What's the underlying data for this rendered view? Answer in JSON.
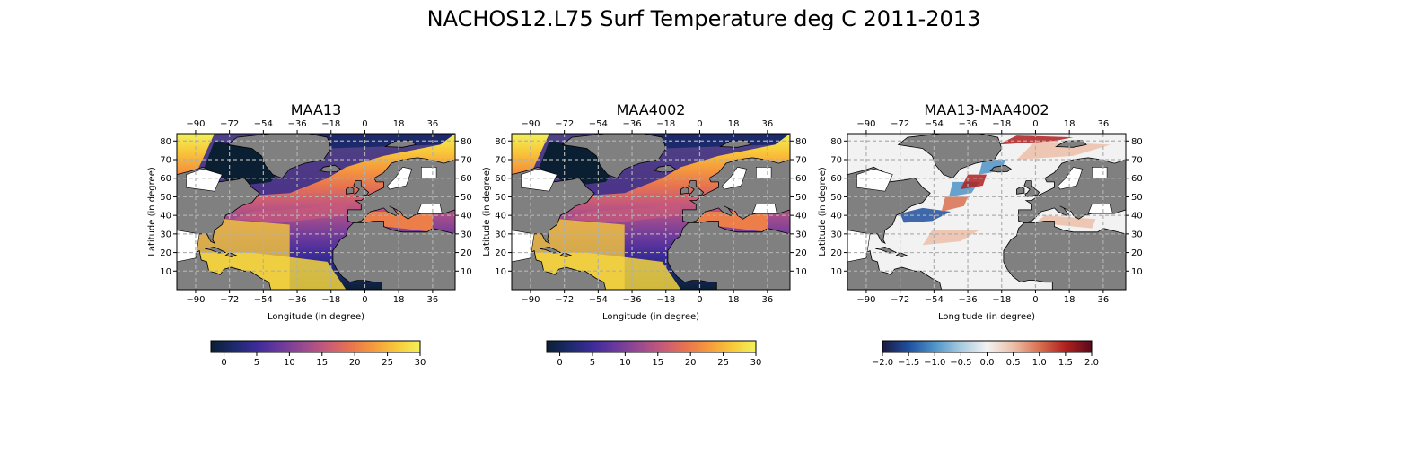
{
  "figure": {
    "title": "NACHOS12.L75 Surf Temperature deg C 2011-2013"
  },
  "colors": {
    "land": "#808080",
    "unmapped_land": "#ffffff",
    "grid": "#b0b0b0",
    "thermal": [
      "#0b1f33",
      "#1c2a6c",
      "#3f2b9a",
      "#6b3a9c",
      "#9a4a8f",
      "#c75a7a",
      "#e8744f",
      "#f59b3c",
      "#f8c93a",
      "#f2f25a"
    ],
    "diverging": [
      "#1a1a40",
      "#1f4fa0",
      "#4f94c8",
      "#a8cbe0",
      "#f2f2f2",
      "#ecbfa8",
      "#d97050",
      "#b02020",
      "#5a0a1a"
    ]
  },
  "chart_data": [
    {
      "type": "heatmap",
      "title": "MAA13",
      "xlabel": "Longitude (in degree)",
      "ylabel": "Latitude (in degree)",
      "x_ticks": [
        "−90",
        "−72",
        "−54",
        "−36",
        "−18",
        "0",
        "18",
        "36"
      ],
      "y_ticks": [
        "10",
        "20",
        "30",
        "40",
        "50",
        "60",
        "70",
        "80"
      ],
      "xlim": [
        -100,
        48
      ],
      "ylim": [
        0,
        84
      ],
      "grid": true,
      "colormap": "thermal",
      "colorbar": {
        "range": [
          -2,
          30
        ],
        "ticks": [
          "0",
          "5",
          "10",
          "15",
          "20",
          "25",
          "30"
        ],
        "tick_values": [
          0,
          5,
          10,
          15,
          20,
          25,
          30
        ]
      },
      "field": "sea surface temperature: ~28 in the Caribbean/Gulf, ~18-20 in the Mediterranean, near 0 in the Labrador Sea and Arctic"
    },
    {
      "type": "heatmap",
      "title": "MAA4002",
      "xlabel": "Longitude (in degree)",
      "ylabel": "Latitude (in degree)",
      "x_ticks": [
        "−90",
        "−72",
        "−54",
        "−36",
        "−18",
        "0",
        "18",
        "36"
      ],
      "y_ticks": [
        "10",
        "20",
        "30",
        "40",
        "50",
        "60",
        "70",
        "80"
      ],
      "xlim": [
        -100,
        48
      ],
      "ylim": [
        0,
        84
      ],
      "grid": true,
      "colormap": "thermal",
      "colorbar": {
        "range": [
          -2,
          30
        ],
        "ticks": [
          "0",
          "5",
          "10",
          "15",
          "20",
          "25",
          "30"
        ],
        "tick_values": [
          0,
          5,
          10,
          15,
          20,
          25,
          30
        ]
      },
      "field": "sea surface temperature, nearly identical to MAA13"
    },
    {
      "type": "heatmap",
      "title": "MAA13-MAA4002",
      "xlabel": "Longitude (in degree)",
      "ylabel": "Latitude (in degree)",
      "x_ticks": [
        "−90",
        "−72",
        "−54",
        "−36",
        "−18",
        "0",
        "18",
        "36"
      ],
      "y_ticks": [
        "10",
        "20",
        "30",
        "40",
        "50",
        "60",
        "70",
        "80"
      ],
      "xlim": [
        -100,
        48
      ],
      "ylim": [
        0,
        84
      ],
      "grid": true,
      "colormap": "diverging",
      "colorbar": {
        "range": [
          -2,
          2
        ],
        "ticks": [
          "−2.0",
          "−1.5",
          "−1.0",
          "−0.5",
          "0.0",
          "0.5",
          "1.0",
          "1.5",
          "2.0"
        ],
        "tick_values": [
          -2,
          -1.5,
          -1,
          -0.5,
          0,
          0.5,
          1,
          1.5,
          2
        ]
      },
      "field": "difference: mostly near 0, strong negative (blue) and positive (red) anomalies along the Gulf Stream / North Atlantic Current, positive red along the Arctic margin"
    }
  ]
}
